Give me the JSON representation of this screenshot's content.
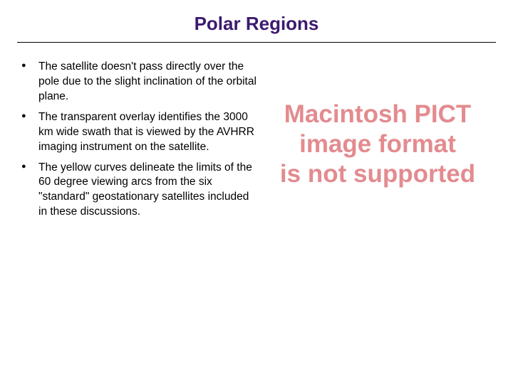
{
  "title": {
    "text": "Polar Regions",
    "fontsize": 26,
    "color": "#3c1a6e"
  },
  "bullets": [
    "The satellite doesn't pass directly over the pole due to the slight inclination of the orbital plane.",
    "The transparent overlay identifies the 3000 km wide swath that is viewed by the AVHRR imaging instrument on the satellite.",
    "The yellow curves delineate the limits of the 60 degree viewing arcs from the six \"standard\" geostationary satellites included in these discussions."
  ],
  "bullet_fontsize": 15.5,
  "bullet_color": "#000000",
  "pict_placeholder": {
    "lines": [
      "Macintosh PICT",
      "image format",
      "is not supported"
    ],
    "color": "#e38b8f",
    "fontsize": 35
  },
  "background_color": "#ffffff",
  "hr_color": "#000000"
}
